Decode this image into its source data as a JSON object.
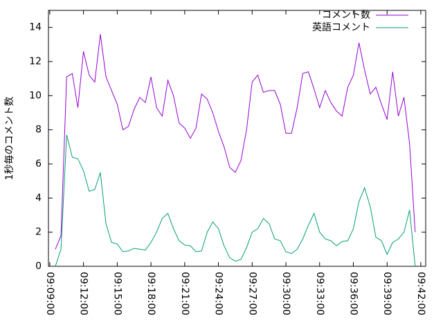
{
  "chart_data": {
    "type": "line",
    "ylabel": "1秒毎のコメント数",
    "x": [
      "09:09:30",
      "09:10:00",
      "09:10:30",
      "09:11:00",
      "09:11:30",
      "09:12:00",
      "09:12:30",
      "09:13:00",
      "09:13:30",
      "09:14:00",
      "09:14:30",
      "09:15:00",
      "09:15:30",
      "09:16:00",
      "09:16:30",
      "09:17:00",
      "09:17:30",
      "09:18:00",
      "09:18:30",
      "09:19:00",
      "09:19:30",
      "09:20:00",
      "09:20:30",
      "09:21:00",
      "09:21:30",
      "09:22:00",
      "09:22:30",
      "09:23:00",
      "09:23:30",
      "09:24:00",
      "09:24:30",
      "09:25:00",
      "09:25:30",
      "09:26:00",
      "09:26:30",
      "09:27:00",
      "09:27:30",
      "09:28:00",
      "09:28:30",
      "09:29:00",
      "09:29:30",
      "09:30:00",
      "09:30:30",
      "09:31:00",
      "09:31:30",
      "09:32:00",
      "09:32:30",
      "09:33:00",
      "09:33:30",
      "09:34:00",
      "09:34:30",
      "09:35:00",
      "09:35:30",
      "09:36:00",
      "09:36:30",
      "09:37:00",
      "09:37:30",
      "09:38:00",
      "09:38:30",
      "09:39:00",
      "09:39:30",
      "09:40:00",
      "09:40:30",
      "09:41:00",
      "09:41:30"
    ],
    "series": [
      {
        "name": "コメント数",
        "color": "#9400d3",
        "values": [
          1.0,
          1.8,
          11.1,
          11.3,
          9.3,
          12.6,
          11.2,
          10.8,
          13.6,
          11.1,
          10.3,
          9.5,
          8.0,
          8.2,
          9.2,
          9.9,
          9.6,
          11.1,
          9.3,
          8.8,
          10.9,
          10.0,
          8.4,
          8.1,
          7.5,
          8.1,
          10.1,
          9.8,
          9.0,
          7.9,
          7.0,
          5.8,
          5.5,
          6.2,
          8.0,
          10.8,
          11.2,
          10.2,
          10.3,
          10.3,
          9.5,
          7.8,
          7.8,
          9.3,
          11.3,
          11.4,
          10.4,
          9.3,
          10.3,
          9.6,
          9.1,
          8.8,
          10.5,
          11.2,
          13.1,
          11.5,
          10.1,
          10.5,
          9.5,
          8.6,
          11.4,
          8.8,
          9.9,
          7.2,
          2.0
        ]
      },
      {
        "name": "英語コメント",
        "color": "#009e73",
        "values": [
          0,
          1.0,
          7.7,
          6.4,
          6.3,
          5.6,
          4.4,
          4.5,
          5.5,
          2.5,
          1.4,
          1.3,
          0.85,
          0.9,
          1.05,
          1.0,
          0.95,
          1.4,
          2.0,
          2.8,
          3.1,
          2.2,
          1.5,
          1.25,
          1.2,
          0.85,
          0.9,
          2.0,
          2.6,
          2.2,
          1.2,
          0.5,
          0.3,
          0.4,
          1.1,
          2.0,
          2.2,
          2.8,
          2.5,
          1.6,
          1.5,
          0.85,
          0.75,
          1.0,
          1.6,
          2.4,
          3.1,
          2.0,
          1.6,
          1.5,
          1.2,
          1.45,
          1.5,
          2.2,
          3.8,
          4.6,
          3.5,
          1.7,
          1.5,
          0.7,
          1.4,
          1.6,
          2.0,
          3.3,
          0
        ]
      }
    ],
    "xlim": [
      "09:08:53",
      "09:42:26"
    ],
    "xticks": [
      "09:09:00",
      "09:12:00",
      "09:15:00",
      "09:18:00",
      "09:21:00",
      "09:24:00",
      "09:27:00",
      "09:30:00",
      "09:33:00",
      "09:36:00",
      "09:39:00",
      "09:42:00"
    ],
    "ylim": [
      0,
      15
    ],
    "yticks": [
      0,
      2,
      4,
      6,
      8,
      10,
      12,
      14
    ],
    "legend": "top-right"
  }
}
